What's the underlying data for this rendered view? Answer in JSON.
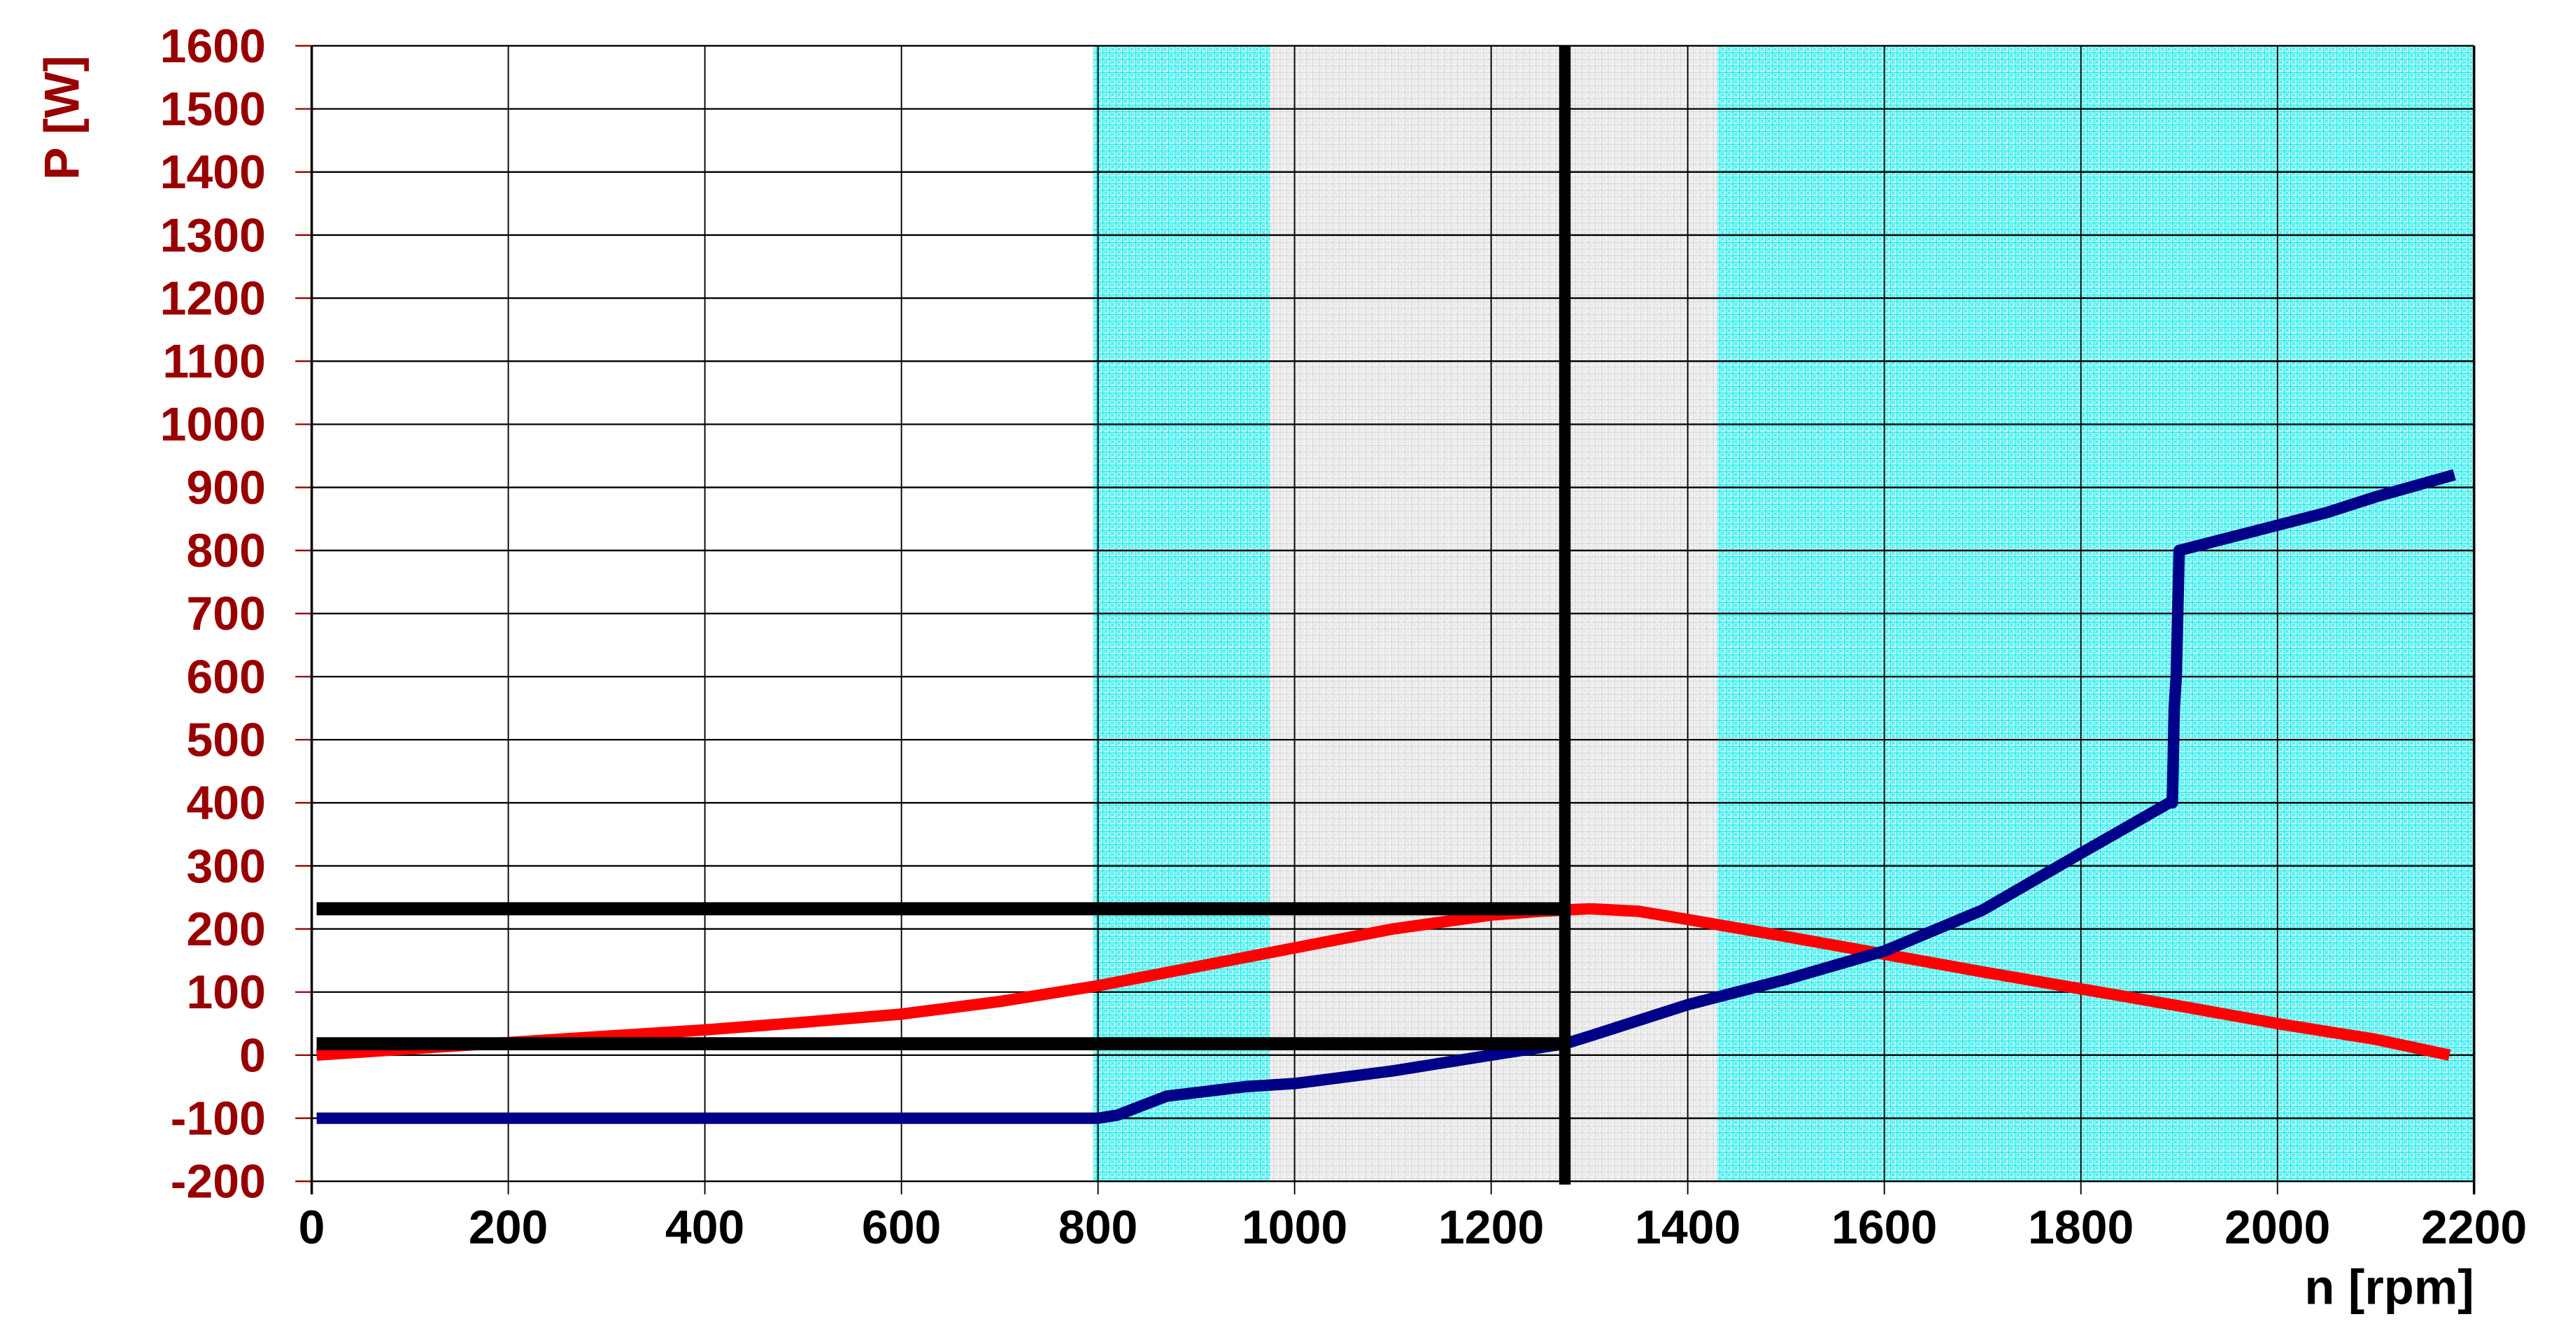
{
  "chart_data": {
    "type": "line",
    "title": "",
    "xlabel": "n [rpm]",
    "ylabel": "P [W]",
    "xlim": [
      0,
      2200
    ],
    "ylim": [
      -200,
      1600
    ],
    "x_ticks": [
      0,
      200,
      400,
      600,
      800,
      1000,
      1200,
      1400,
      1600,
      1800,
      2000,
      2200
    ],
    "y_ticks": [
      -200,
      -100,
      0,
      100,
      200,
      300,
      400,
      500,
      600,
      700,
      800,
      900,
      1000,
      1100,
      1200,
      1300,
      1400,
      1500,
      1600
    ],
    "grid": true,
    "legend": null,
    "bands": [
      {
        "name": "cyan-band-1",
        "x_start": 795,
        "x_end": 975,
        "color": "#00ffff"
      },
      {
        "name": "grey-band",
        "x_start": 975,
        "x_end": 1430,
        "color": "#d9d9d9"
      },
      {
        "name": "cyan-band-2",
        "x_start": 1430,
        "x_end": 2200,
        "color": "#00ffff"
      }
    ],
    "series": [
      {
        "name": "red-power-curve",
        "color": "#ff0000",
        "x": [
          5,
          100,
          200,
          300,
          400,
          500,
          600,
          700,
          800,
          900,
          1000,
          1100,
          1200,
          1250,
          1300,
          1350,
          1400,
          1500,
          1600,
          1700,
          1800,
          1900,
          2000,
          2100,
          2175
        ],
        "y": [
          0,
          10,
          20,
          30,
          40,
          52,
          65,
          85,
          110,
          140,
          170,
          200,
          222,
          228,
          232,
          228,
          215,
          188,
          160,
          132,
          105,
          78,
          50,
          25,
          0
        ]
      },
      {
        "name": "blue-power-curve",
        "color": "#000088",
        "x": [
          5,
          100,
          200,
          400,
          600,
          800,
          820,
          870,
          950,
          1000,
          1100,
          1200,
          1275,
          1300,
          1400,
          1500,
          1600,
          1700,
          1800,
          1890,
          1893,
          1895,
          1897,
          1900,
          1950,
          2000,
          2050,
          2100,
          2180
        ],
        "y": [
          -100,
          -100,
          -100,
          -100,
          -100,
          -100,
          -95,
          -65,
          -50,
          -45,
          -25,
          0,
          18,
          30,
          80,
          120,
          165,
          230,
          320,
          400,
          400,
          550,
          600,
          800,
          820,
          840,
          860,
          885,
          920
        ]
      }
    ],
    "annotations": [
      {
        "name": "vertical-marker",
        "type": "vline",
        "x": 1275,
        "y_from": -200,
        "y_to": 1600,
        "color": "#000000"
      },
      {
        "name": "upper-marker",
        "type": "hline",
        "y": 232,
        "x_from": 5,
        "x_to": 1275,
        "color": "#000000"
      },
      {
        "name": "lower-marker",
        "type": "hline",
        "y": 18,
        "x_from": 5,
        "x_to": 1275,
        "color": "#000000"
      }
    ]
  },
  "colors": {
    "axis_text": "#990000",
    "x_text": "#000000",
    "grid": "#000000",
    "cyan": "#00ffff",
    "grey": "#d9d9d9"
  }
}
